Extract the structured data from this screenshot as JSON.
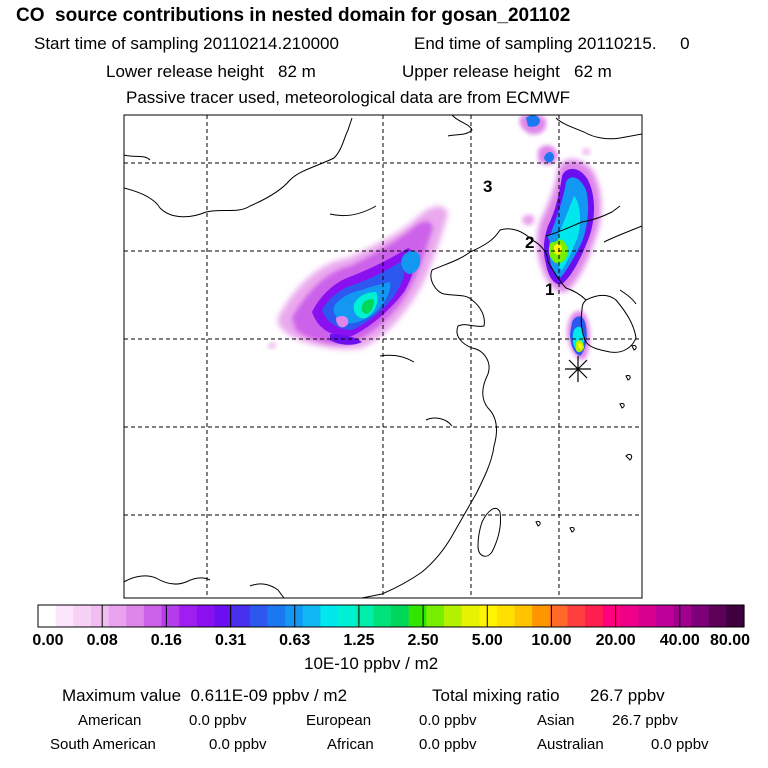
{
  "header": {
    "title": "CO  source contributions in nested domain for gosan_201102",
    "start_time": "Start time of sampling 20110214.210000",
    "end_time": "End time of sampling 20110215.     0",
    "lower_height": "Lower release height   82 m",
    "upper_height": "Upper release height   62 m",
    "tracer_note": "Passive tracer used, meteorological data are from ECMWF"
  },
  "map": {
    "labels": [
      "1",
      "2",
      "3"
    ],
    "receptor_marker": "asterisk-icon"
  },
  "colorbar": {
    "colors": [
      "#ffffff",
      "#fbe6fb",
      "#f7d2f7",
      "#f2bef2",
      "#e9a3ee",
      "#de86ea",
      "#cc62ea",
      "#b43cee",
      "#a01ef0",
      "#8a10f0",
      "#6a10f0",
      "#4830ee",
      "#2c58f0",
      "#1a78f0",
      "#1298f2",
      "#0fb8f4",
      "#00e8ee",
      "#00f0d4",
      "#00eeaa",
      "#00e37a",
      "#00d65a",
      "#30e600",
      "#78ee00",
      "#b4f000",
      "#e6f200",
      "#fff500",
      "#ffe000",
      "#ffc300",
      "#ff9600",
      "#ff6a2a",
      "#ff3f3f",
      "#ff1e4e",
      "#ff007f",
      "#f00088",
      "#d8008e",
      "#c0009a",
      "#a0008c",
      "#7e0078",
      "#5c0058",
      "#400040"
    ],
    "tick_labels": [
      "0.00",
      "0.08",
      "0.16",
      "0.31",
      "0.63",
      "1.25",
      "2.50",
      "5.00",
      "10.00",
      "20.00",
      "40.00",
      "80.00"
    ],
    "units": "10E-10 ppbv / m2"
  },
  "summary": {
    "max_value": "Maximum value  0.611E-09 ppbv / m2",
    "total_mixing_label": "Total mixing ratio",
    "total_mixing_value": "26.7 ppbv",
    "american_label": "American",
    "american_value": "0.0 ppbv",
    "european_label": "European",
    "european_value": "0.0 ppbv",
    "asian_label": "Asian",
    "asian_value": "26.7 ppbv",
    "south_american_label": "South American",
    "south_american_value": "0.0 ppbv",
    "african_label": "African",
    "african_value": "0.0 ppbv",
    "australian_label": "Australian",
    "australian_value": "0.0 ppbv"
  }
}
